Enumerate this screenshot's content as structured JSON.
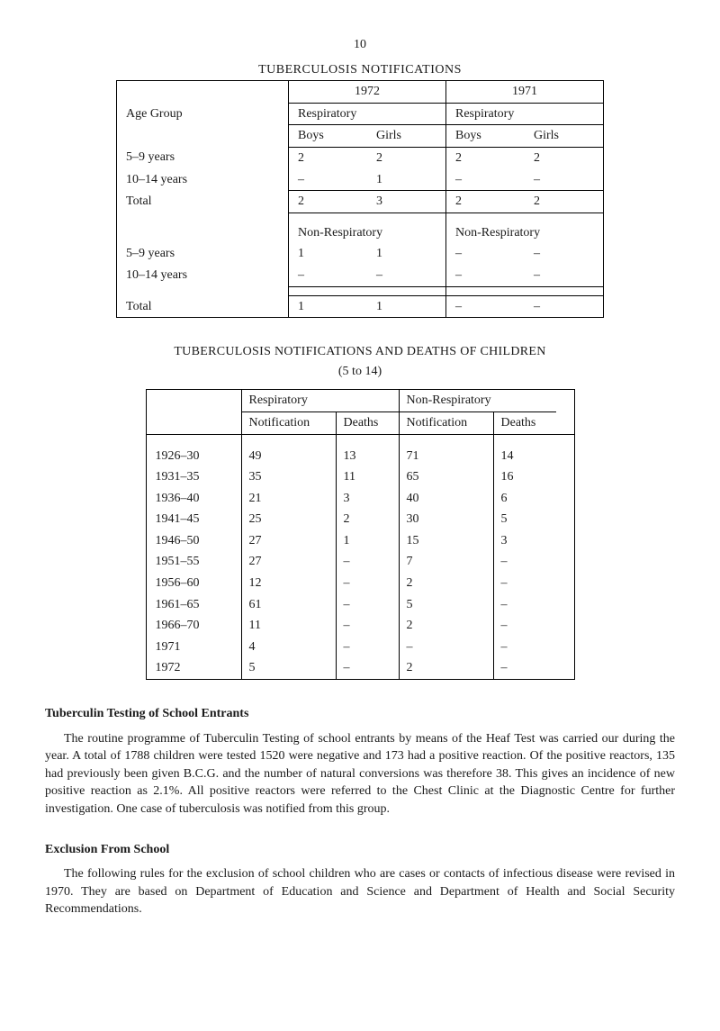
{
  "page_number": "10",
  "table1": {
    "title": "TUBERCULOSIS NOTIFICATIONS",
    "age_group_label": "Age Group",
    "years": [
      "1972",
      "1971"
    ],
    "respiratory_label": "Respiratory",
    "non_respiratory_label": "Non-Respiratory",
    "boys_label": "Boys",
    "girls_label": "Girls",
    "total_label": "Total",
    "rows": [
      {
        "label": "5–9 years",
        "y1972_b": "2",
        "y1972_g": "2",
        "y1971_b": "2",
        "y1971_g": "2"
      },
      {
        "label": "10–14 years",
        "y1972_b": "–",
        "y1972_g": "1",
        "y1971_b": "–",
        "y1971_g": "–"
      }
    ],
    "resp_total": {
      "y1972_b": "2",
      "y1972_g": "3",
      "y1971_b": "2",
      "y1971_g": "2"
    },
    "nonresp_rows": [
      {
        "label": "5–9 years",
        "y1972_b": "1",
        "y1972_g": "1",
        "y1971_b": "–",
        "y1971_g": "–"
      },
      {
        "label": "10–14 years",
        "y1972_b": "–",
        "y1972_g": "–",
        "y1971_b": "–",
        "y1971_g": "–"
      }
    ],
    "nonresp_total": {
      "y1972_b": "1",
      "y1972_g": "1",
      "y1971_b": "–",
      "y1971_g": "–"
    }
  },
  "table2": {
    "title": "TUBERCULOSIS NOTIFICATIONS AND DEATHS OF CHILDREN",
    "subtitle": "(5 to 14)",
    "respiratory_label": "Respiratory",
    "non_respiratory_label": "Non-Respiratory",
    "notification_label": "Notification",
    "deaths_label": "Deaths",
    "rows": [
      {
        "period": "1926–30",
        "rn": "49",
        "rd": "13",
        "nn": "71",
        "nd": "14"
      },
      {
        "period": "1931–35",
        "rn": "35",
        "rd": "11",
        "nn": "65",
        "nd": "16"
      },
      {
        "period": "1936–40",
        "rn": "21",
        "rd": "3",
        "nn": "40",
        "nd": "6"
      },
      {
        "period": "1941–45",
        "rn": "25",
        "rd": "2",
        "nn": "30",
        "nd": "5"
      },
      {
        "period": "1946–50",
        "rn": "27",
        "rd": "1",
        "nn": "15",
        "nd": "3"
      },
      {
        "period": "1951–55",
        "rn": "27",
        "rd": "–",
        "nn": "7",
        "nd": "–"
      },
      {
        "period": "1956–60",
        "rn": "12",
        "rd": "–",
        "nn": "2",
        "nd": "–"
      },
      {
        "period": "1961–65",
        "rn": "61",
        "rd": "–",
        "nn": "5",
        "nd": "–"
      },
      {
        "period": "1966–70",
        "rn": "11",
        "rd": "–",
        "nn": "2",
        "nd": "–"
      },
      {
        "period": "1971",
        "rn": "4",
        "rd": "–",
        "nn": "–",
        "nd": "–"
      },
      {
        "period": "1972",
        "rn": "5",
        "rd": "–",
        "nn": "2",
        "nd": "–"
      }
    ]
  },
  "section1": {
    "heading": "Tuberculin Testing of School Entrants",
    "body": "The routine programme of Tuberculin Testing of school entrants by means of the Heaf Test was carried our during the year. A total of 1788 children were tested 1520 were negative and 173 had a positive reaction. Of the positive reactors, 135 had previously been given B.C.G. and the number of natural conversions was therefore 38. This gives an incidence of new positive reaction as 2.1%. All positive reactors were referred to the Chest Clinic at the Diagnostic Centre for further investigation. One case of tuberculosis was notified from this group."
  },
  "section2": {
    "heading": "Exclusion From School",
    "body": "The following rules for the exclusion of school children who are cases or contacts of infectious disease were revised in 1970. They are based on Department of Education and Science and Department of Health and Social Security Recommendations."
  }
}
